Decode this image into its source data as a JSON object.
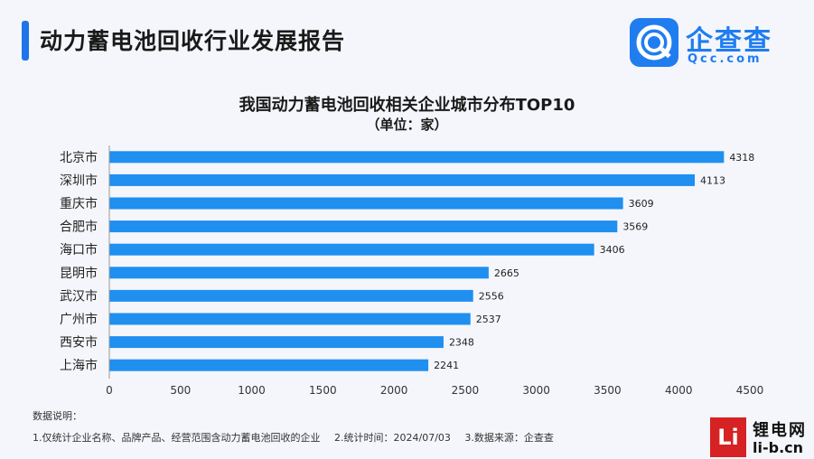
{
  "report": {
    "title": "动力蓄电池回收行业发展报告",
    "logo_text": "企查查",
    "logo_sub": "Qcc.com"
  },
  "chart_data": {
    "type": "bar",
    "orientation": "horizontal",
    "title": "我国动力蓄电池回收相关企业城市分布TOP10",
    "subtitle": "（单位：家）",
    "categories": [
      "北京市",
      "深圳市",
      "重庆市",
      "合肥市",
      "海口市",
      "昆明市",
      "武汉市",
      "广州市",
      "西安市",
      "上海市"
    ],
    "values": [
      4318,
      4113,
      3609,
      3569,
      3406,
      2665,
      2556,
      2537,
      2348,
      2241
    ],
    "xlim": [
      0,
      4500
    ],
    "xticks": [
      "0",
      "500",
      "1000",
      "1500",
      "2000",
      "2500",
      "3000",
      "3500",
      "4000",
      "4500"
    ],
    "bar_color": "#1f8ff0",
    "grid": false
  },
  "notes": {
    "heading": "数据说明：",
    "items": [
      "1.仅统计企业名称、品牌产品、经营范围含动力蓄电池回收的企业",
      "2.统计时间：2024/07/03",
      "3.数据来源：企查查"
    ]
  },
  "watermark": {
    "box": "Li",
    "cn": "锂电网",
    "en": "li-b.cn"
  }
}
